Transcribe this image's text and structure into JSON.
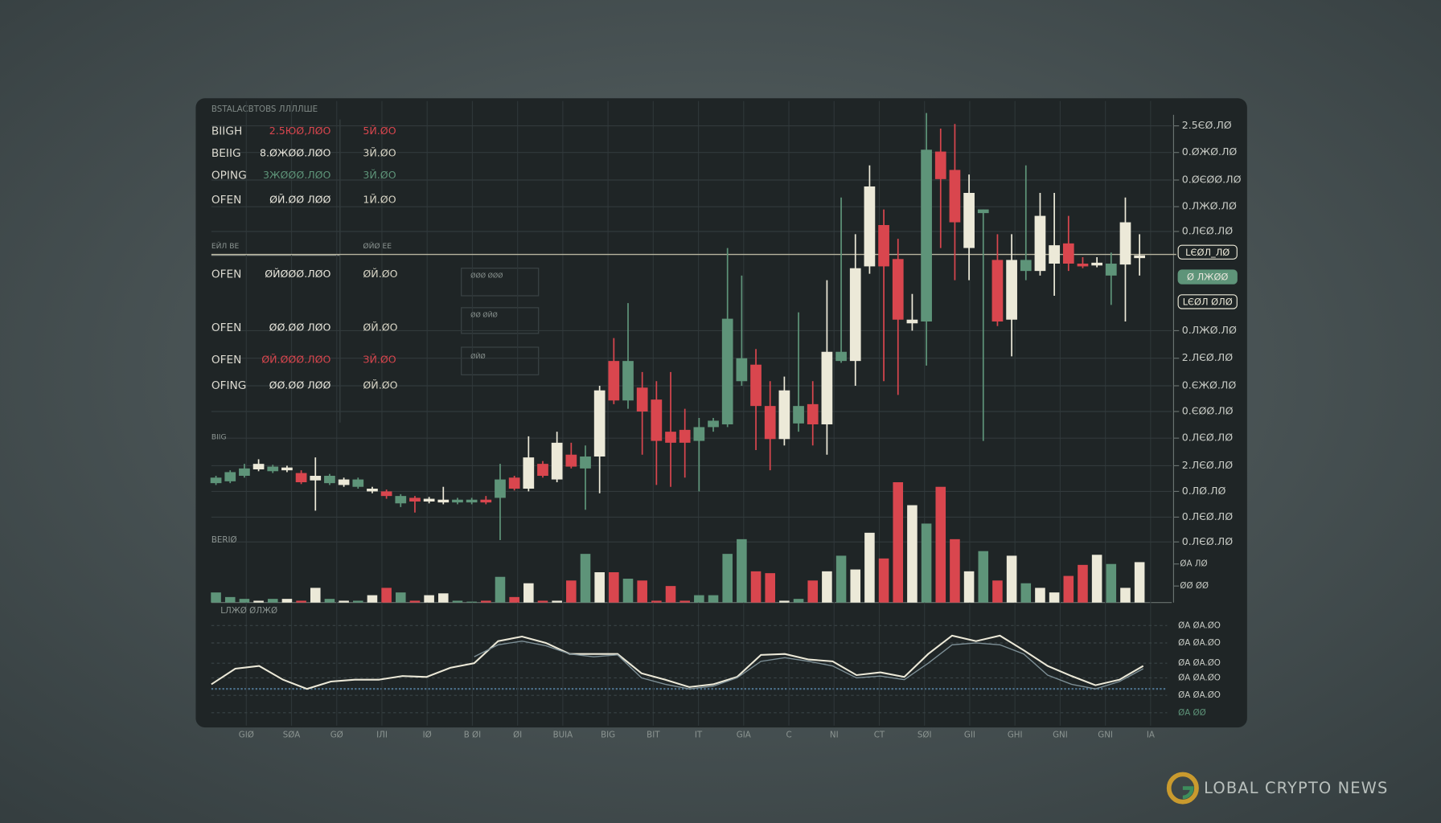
{
  "chart_data": {
    "type": "candlestick",
    "title": "BSTALACBTOBS ЛЛЛЛШE",
    "grid": true,
    "ylim": [
      0,
      480
    ],
    "yticks": [
      {
        "value": 463,
        "label": "2.5ЄØ.ЛØ"
      },
      {
        "value": 434,
        "label": "0.ØЖØ.ЛØ"
      },
      {
        "value": 404,
        "label": "0.ØЄØØ.ЛØ"
      },
      {
        "value": 375,
        "label": "0.ЛЖØ.ЛØ"
      },
      {
        "value": 348,
        "label": "0.ЛЄØ.ЛØ"
      },
      {
        "value": 240,
        "label": "0.ЛЖØ.ЛØ"
      },
      {
        "value": 210,
        "label": "2.ЛЄØ.ЛØ"
      },
      {
        "value": 180,
        "label": "0.ЄЖØ.ЛØ"
      },
      {
        "value": 152,
        "label": "0.ЄØØ.ЛØ"
      },
      {
        "value": 123,
        "label": "0.ЛЄØ.ЛØ"
      },
      {
        "value": 93,
        "label": "2.ЛЄØ.ЛØ"
      },
      {
        "value": 65,
        "label": "0.ЛØ.ЛØ"
      },
      {
        "value": 37,
        "label": "0.ЛЄØ.ЛØ"
      },
      {
        "value": 10,
        "label": "0.ЛЄØ.ЛØ"
      }
    ],
    "markers": [
      {
        "value": 326,
        "label": "LЄØЛ_ЛØ",
        "color": "#ece9d8"
      },
      {
        "value": 299,
        "label": "Ø ЛЖØØ",
        "color": "#5e9479"
      },
      {
        "value": 272,
        "label": "LЄØЛ ØЛØ",
        "color": "#ece9d8"
      }
    ],
    "open": [
      74,
      76,
      82,
      89,
      87,
      88,
      85,
      77,
      74,
      72,
      70,
      65,
      65,
      52,
      58,
      54,
      53,
      53,
      53,
      56,
      58,
      80,
      68,
      95,
      78,
      105,
      90,
      103,
      207,
      164,
      178,
      165,
      130,
      132,
      120,
      135,
      138,
      185,
      203,
      158,
      122,
      139,
      160,
      138,
      207,
      207,
      310,
      355,
      318,
      248,
      250,
      435,
      415,
      330,
      368,
      317,
      252,
      305,
      305,
      313,
      335,
      313,
      311,
      300,
      312,
      319
    ],
    "high": [
      82,
      88,
      95,
      100,
      94,
      93,
      88,
      102,
      84,
      80,
      80,
      70,
      67,
      62,
      60,
      59,
      70,
      58,
      58,
      60,
      95,
      82,
      125,
      98,
      130,
      118,
      115,
      180,
      232,
      270,
      195,
      185,
      195,
      155,
      145,
      145,
      330,
      300,
      220,
      185,
      190,
      260,
      185,
      295,
      385,
      345,
      420,
      372,
      340,
      280,
      477,
      460,
      465,
      410,
      372,
      345,
      345,
      420,
      390,
      390,
      365,
      320,
      320,
      325,
      385,
      345
    ],
    "low": [
      72,
      74,
      80,
      87,
      85,
      86,
      73,
      44,
      72,
      70,
      68,
      63,
      57,
      48,
      42,
      52,
      51,
      51,
      51,
      51,
      12,
      66,
      65,
      80,
      75,
      90,
      45,
      63,
      160,
      155,
      105,
      72,
      70,
      80,
      65,
      130,
      135,
      180,
      110,
      88,
      115,
      130,
      115,
      105,
      205,
      180,
      302,
      185,
      170,
      240,
      202,
      330,
      295,
      295,
      120,
      245,
      212,
      295,
      300,
      278,
      305,
      308,
      309,
      268,
      250,
      300
    ],
    "close": [
      80,
      86,
      90,
      95,
      92,
      91,
      75,
      82,
      82,
      78,
      78,
      68,
      60,
      60,
      54,
      57,
      56,
      56,
      56,
      53,
      78,
      68,
      102,
      82,
      118,
      92,
      103,
      175,
      164,
      207,
      152,
      120,
      118,
      118,
      135,
      142,
      253,
      210,
      158,
      122,
      175,
      158,
      138,
      217,
      217,
      308,
      397,
      310,
      252,
      252,
      437,
      405,
      358,
      390,
      372,
      250,
      317,
      317,
      365,
      333,
      313,
      310,
      314,
      313,
      358,
      322
    ],
    "colors": [
      "#5e9479",
      "#5e9479",
      "#5e9479",
      "#ece9d8",
      "#5e9479",
      "#ece9d8",
      "#d9464e",
      "#ece9d8",
      "#5e9479",
      "#ece9d8",
      "#5e9479",
      "#ece9d8",
      "#d9464e",
      "#5e9479",
      "#d9464e",
      "#ece9d8",
      "#ece9d8",
      "#5e9479",
      "#5e9479",
      "#d9464e",
      "#5e9479",
      "#d9464e",
      "#ece9d8",
      "#d9464e",
      "#ece9d8",
      "#d9464e",
      "#5e9479",
      "#ece9d8",
      "#d9464e",
      "#5e9479",
      "#d9464e",
      "#d9464e",
      "#d9464e",
      "#d9464e",
      "#5e9479",
      "#5e9479",
      "#5e9479",
      "#5e9479",
      "#d9464e",
      "#d9464e",
      "#ece9d8",
      "#5e9479",
      "#d9464e",
      "#ece9d8",
      "#5e9479",
      "#ece9d8",
      "#ece9d8",
      "#d9464e",
      "#d9464e",
      "#ece9d8",
      "#5e9479",
      "#d9464e",
      "#d9464e",
      "#ece9d8",
      "#5e9479",
      "#d9464e",
      "#ece9d8",
      "#5e9479",
      "#ece9d8",
      "#ece9d8",
      "#d9464e",
      "#d9464e",
      "#ece9d8",
      "#5e9479",
      "#ece9d8",
      "#ece9d8"
    ],
    "x_tick_labels": [
      "GIØ",
      "SØA",
      "GØ",
      "IЛI",
      "IØ",
      "B ØI",
      "ØI",
      "BUIA",
      "BIG",
      "BIT",
      "IT",
      "GIA",
      "C",
      "NI",
      "CT",
      "SØI",
      "GII",
      "GHI",
      "GNI",
      "GNI",
      "IA"
    ],
    "volume": {
      "label": "BERIØ",
      "ylim": [
        0,
        140
      ],
      "yticks": [
        {
          "value": 42,
          "label": "ØA ЛØ"
        },
        {
          "value": 18,
          "label": "ØØ ØØ"
        }
      ],
      "values": [
        11,
        6,
        4,
        2,
        4,
        4,
        2,
        16,
        4,
        2,
        2,
        8,
        16,
        11,
        2,
        8,
        10,
        2,
        1,
        2,
        28,
        6,
        21,
        2,
        2,
        24,
        53,
        33,
        33,
        26,
        24,
        2,
        18,
        2,
        8,
        8,
        53,
        69,
        34,
        32,
        2,
        4,
        24,
        34,
        51,
        36,
        76,
        48,
        131,
        106,
        86,
        126,
        69,
        34,
        56,
        24,
        51,
        21,
        16,
        11,
        29,
        41,
        52,
        42,
        16,
        44
      ]
    },
    "indicator": {
      "label": "LЛЖØ ØЛЖØ",
      "ylim": [
        0,
        100
      ],
      "yticks": [
        {
          "value": 99,
          "label": "ØA ØA.ØO"
        },
        {
          "value": 80,
          "label": "ØA ØA.ØO"
        },
        {
          "value": 58,
          "label": "ØA ØA.ØO"
        },
        {
          "value": 42,
          "label": "ØA ØA.ØO"
        },
        {
          "value": 23,
          "label": "ØA ØA.ØO"
        },
        {
          "value": 4,
          "label": "ØA ØØ"
        }
      ],
      "series": [
        {
          "color": "#ece9d8",
          "values": [
            35,
            52,
            55,
            40,
            30,
            38,
            40,
            40,
            44,
            43,
            53,
            58,
            82,
            87,
            80,
            68,
            68,
            68,
            47,
            40,
            32,
            35,
            43,
            67,
            68,
            62,
            60,
            45,
            48,
            43,
            68,
            88,
            82,
            88,
            72,
            55,
            44,
            34,
            40,
            55
          ]
        },
        {
          "color": "#7d8f96",
          "values": [
            null,
            null,
            null,
            null,
            null,
            null,
            null,
            null,
            null,
            null,
            null,
            65,
            78,
            82,
            77,
            68,
            65,
            67,
            42,
            35,
            30,
            33,
            42,
            60,
            64,
            60,
            55,
            42,
            44,
            40,
            58,
            78,
            80,
            78,
            68,
            45,
            35,
            30,
            38,
            52
          ]
        }
      ]
    }
  },
  "panel": {
    "rows": [
      {
        "label": "BIIGH",
        "value": "2.5ЮØ,ЛØO",
        "change": "5Й.ØO",
        "color": "#d9464e"
      },
      {
        "label": "BEIIG",
        "value": "8.ØЖØØ.ЛØO",
        "change": "3Й.ØO",
        "color": "#e8e6dc"
      },
      {
        "label": "OPING",
        "value": "3ЖØØØ.ЛØO",
        "change": "3Й.ØO",
        "color": "#5e9479"
      },
      {
        "label": "OFEN",
        "value": "ØЙ.ØØ ЛØØ",
        "change": "1Й.ØO",
        "color": "#e8e6dc"
      },
      {
        "label": "OFEN",
        "value": "ØЙØØØ.ЛØO",
        "change": "ØЙ.ØO",
        "color": "#e8e6dc"
      },
      {
        "label": "OFEN",
        "value": "ØØ.ØØ ЛØO",
        "change": "ØЙ.ØO",
        "color": "#e8e6dc"
      },
      {
        "label": "OFEN",
        "value": "ØЙ.ØØØ.ЛØO",
        "change": "ЗЙ.ØO",
        "color": "#d9464e"
      },
      {
        "label": "OFING",
        "value": "ØØ.ØØ ЛØØ",
        "change": "ØЙ.ØO",
        "color": "#e8e6dc"
      }
    ],
    "sections": [
      "ЕЙЛ ВЕ",
      "ØЙØ ЕЕ",
      "BIIG"
    ],
    "notes": [
      "ØØØ ØØØ",
      "ØØ ØЙØ",
      "ØЙØ"
    ]
  },
  "watermark": "LOBAL CRYPTO NEWS"
}
